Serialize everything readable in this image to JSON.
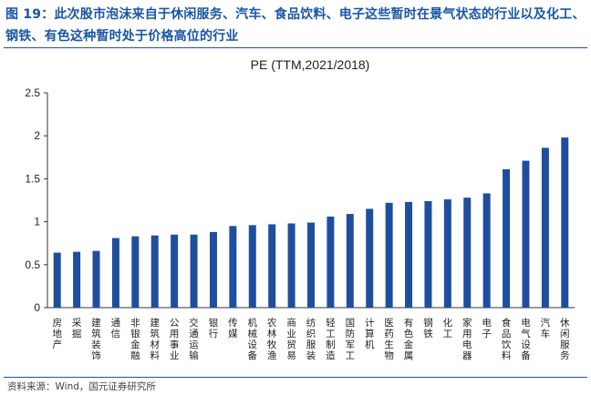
{
  "figure": {
    "title": "图 19：此次股市泡沫来自于休闲服务、汽车、食品饮料、电子这些暂时在景气状态的行业以及化工、钢铁、有色这种暂时处于价格高位的行业",
    "source": "资料来源：Wind，国元证券研究所"
  },
  "colors": {
    "bar": "#1f4e9e",
    "title": "#1a55a6",
    "axis": "#333333"
  },
  "chart_data": {
    "type": "bar",
    "title": "PE (TTM,2021/2018)",
    "xlabel": "",
    "ylabel": "",
    "ylim": [
      0,
      2.5
    ],
    "yticks": [
      "0",
      "0.5",
      "1",
      "1.5",
      "2",
      "2.5"
    ],
    "grid": false,
    "categories": [
      "房地产",
      "采掘",
      "建筑装饰",
      "通信",
      "非银金融",
      "建筑材料",
      "公用事业",
      "交通运输",
      "银行",
      "传媒",
      "机械设备",
      "农林牧渔",
      "商业贸易",
      "纺织服装",
      "轻工制造",
      "国防军工",
      "计算机",
      "医药生物",
      "有色金属",
      "钢铁",
      "化工",
      "家用电器",
      "电子",
      "食品饮料",
      "电气设备",
      "汽车",
      "休闲服务"
    ],
    "values": [
      0.64,
      0.65,
      0.66,
      0.81,
      0.83,
      0.84,
      0.85,
      0.85,
      0.88,
      0.95,
      0.96,
      0.97,
      0.98,
      0.99,
      1.06,
      1.09,
      1.15,
      1.22,
      1.23,
      1.24,
      1.26,
      1.28,
      1.33,
      1.61,
      1.71,
      1.86,
      1.98
    ]
  }
}
